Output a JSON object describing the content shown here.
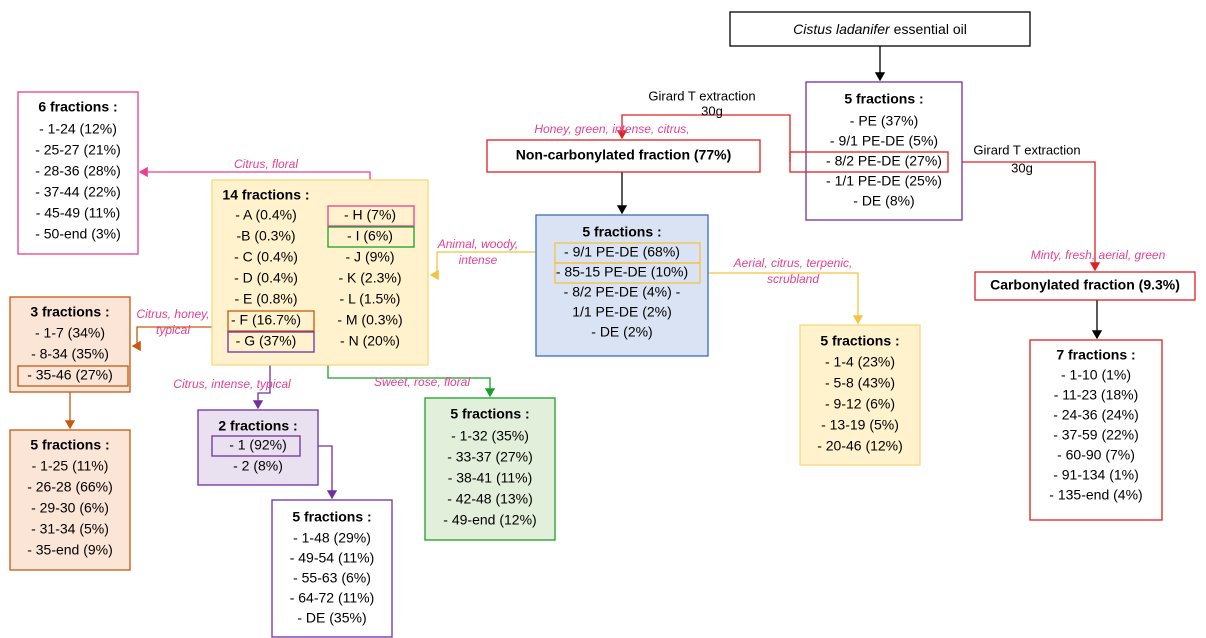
{
  "source": {
    "species": "Cistus ladanifer",
    "rest": "essential oil"
  },
  "extraction_labels": [
    {
      "line1": "Girard T extraction",
      "line2": "30g"
    },
    {
      "line1": "Girard T extraction",
      "line2": "30g"
    }
  ],
  "nodes": [
    {
      "title": "5 fractions :",
      "items": [
        "- PE (37%)",
        "- 9/1 PE-DE (5%)",
        "- 8/2 PE-DE (27%)",
        "- 1/1 PE-DE (25%)",
        "- DE (8%)"
      ]
    },
    {
      "title": "Non-carbonylated fraction (77%)"
    },
    {
      "title": "5 fractions :",
      "items": [
        "- 9/1 PE-DE (68%)",
        "- 85-15 PE-DE (10%)",
        "- 8/2 PE-DE (4%) -",
        "1/1 PE-DE (2%)",
        "- DE (2%)"
      ]
    },
    {
      "title": "14 fractions :",
      "columns": [
        [
          "- A (0.4%)",
          "-B (0.3%)",
          "- C (0.4%)",
          "- D (0.4%)",
          "- E (0.8%)",
          "- F (16.7%)",
          "- G (37%)"
        ],
        [
          "- H (7%)",
          "- I (6%)",
          "- J (9%)",
          "- K (2.3%)",
          "- L (1.5%)",
          "- M (0.3%)",
          "- N (20%)"
        ]
      ]
    },
    {
      "title": "6 fractions :",
      "items": [
        "- 1-24 (12%)",
        "- 25-27 (21%)",
        "- 28-36 (28%)",
        "- 37-44 (22%)",
        "- 45-49 (11%)",
        "- 50-end (3%)"
      ]
    },
    {
      "title": "3 fractions :",
      "items": [
        "- 1-7 (34%)",
        "- 8-34 (35%)",
        "- 35-46 (27%)"
      ]
    },
    {
      "title": "5 fractions :",
      "items": [
        "- 1-25 (11%)",
        "- 26-28 (66%)",
        "- 29-30 (6%)",
        "- 31-34 (5%)",
        "- 35-end (9%)"
      ]
    },
    {
      "title": "2 fractions :",
      "items": [
        "- 1 (92%)",
        "- 2 (8%)"
      ]
    },
    {
      "title": "5 fractions :",
      "items": [
        "- 1-48 (29%)",
        "- 49-54 (11%)",
        "- 55-63 (6%)",
        "- 64-72 (11%)",
        "- DE (35%)"
      ]
    },
    {
      "title": "5 fractions :",
      "items": [
        "- 1-32 (35%)",
        "- 33-37 (27%)",
        "- 38-41 (11%)",
        "- 42-48 (13%)",
        "- 49-end (12%)"
      ]
    },
    {
      "title": "5 fractions :",
      "items": [
        "- 1-4 (23%)",
        "- 5-8 (43%)",
        "- 9-12 (6%)",
        "- 13-19 (5%)",
        "- 20-46 (12%)"
      ]
    },
    {
      "title": "Carbonylated fraction (9.3%)"
    },
    {
      "title": "7 fractions :",
      "items": [
        "- 1-10 (1%)",
        "- 11-23 (18%)",
        "- 24-36 (24%)",
        "- 37-59 (22%)",
        "- 60-90 (7%)",
        "- 91-134 (1%)",
        "- 135-end (4%)"
      ]
    }
  ],
  "descriptors": [
    {
      "lines": [
        "Honey, green, intense, citrus,"
      ]
    },
    {
      "lines": [
        "Citrus, floral"
      ]
    },
    {
      "lines": [
        "Animal, woody,",
        "intense"
      ]
    },
    {
      "lines": [
        "Aerial, citrus, terpenic,",
        "scrubland"
      ]
    },
    {
      "lines": [
        "Minty, fresh, aerial, green"
      ]
    },
    {
      "lines": [
        "Citrus, honey,",
        "typical"
      ]
    },
    {
      "lines": [
        "Citrus, intense, typical"
      ]
    },
    {
      "lines": [
        "Sweet, rose, floral"
      ]
    }
  ]
}
